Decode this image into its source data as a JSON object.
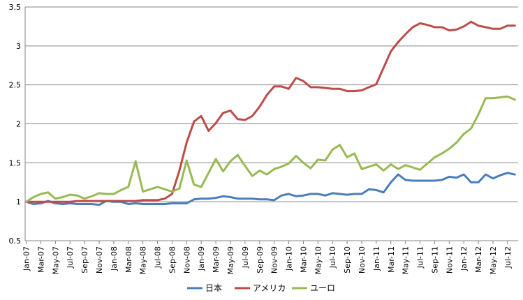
{
  "chart_data": {
    "type": "line",
    "title": "",
    "xlabel": "",
    "ylabel": "",
    "ylim": [
      0.5,
      3.5
    ],
    "yticks": [
      "0.5",
      "1",
      "1.5",
      "2",
      "2.5",
      "3",
      "3.5"
    ],
    "grid": "horizontal",
    "legend": "bottom",
    "x": [
      "Jan-07",
      "Feb-07",
      "Mar-07",
      "Apr-07",
      "May-07",
      "Jun-07",
      "Jul-07",
      "Aug-07",
      "Sep-07",
      "Oct-07",
      "Nov-07",
      "Dec-07",
      "Jan-08",
      "Feb-08",
      "Mar-08",
      "Apr-08",
      "May-08",
      "Jun-08",
      "Jul-08",
      "Aug-08",
      "Sep-08",
      "Oct-08",
      "Nov-08",
      "Dec-08",
      "Jan-09",
      "Feb-09",
      "Mar-09",
      "Apr-09",
      "May-09",
      "Jun-09",
      "Jul-09",
      "Aug-09",
      "Sep-09",
      "Oct-09",
      "Nov-09",
      "Dec-09",
      "Jan-10",
      "Feb-10",
      "Mar-10",
      "Apr-10",
      "May-10",
      "Jun-10",
      "Jul-10",
      "Aug-10",
      "Sep-10",
      "Oct-10",
      "Nov-10",
      "Dec-10",
      "Jan-11",
      "Feb-11",
      "Mar-11",
      "Apr-11",
      "May-11",
      "Jun-11",
      "Jul-11",
      "Aug-11",
      "Sep-11",
      "Oct-11",
      "Nov-11",
      "Dec-11",
      "Jan-12",
      "Feb-12",
      "Mar-12",
      "Apr-12",
      "May-12",
      "Jun-12",
      "Jul-12",
      "Aug-12"
    ],
    "xtick_labels": [
      "Jan-07",
      "Mar-07",
      "May-07",
      "Jul-07",
      "Sep-07",
      "Nov-07",
      "Jan-08",
      "Mar-08",
      "May-08",
      "Jul-08",
      "Sep-08",
      "Nov-08",
      "Jan-09",
      "Mar-09",
      "May-09",
      "Jul-09",
      "Sep-09",
      "Nov-09",
      "Jan-10",
      "Mar-10",
      "May-10",
      "Jul-10",
      "Sep-10",
      "Nov-10",
      "Jan-11",
      "Mar-11",
      "May-11",
      "Jul-11",
      "Sep-11",
      "Nov-11",
      "Jan-12",
      "Mar-12",
      "May-12",
      "Jul-12"
    ],
    "series": [
      {
        "name": "日本",
        "color": "#4a7ebb",
        "values": [
          1.0,
          0.97,
          0.98,
          1.01,
          0.98,
          0.97,
          0.98,
          0.97,
          0.97,
          0.97,
          0.96,
          1.01,
          1.0,
          1.0,
          0.97,
          0.98,
          0.97,
          0.97,
          0.97,
          0.97,
          0.98,
          0.98,
          0.98,
          1.03,
          1.04,
          1.04,
          1.05,
          1.07,
          1.06,
          1.04,
          1.04,
          1.04,
          1.03,
          1.03,
          1.02,
          1.08,
          1.1,
          1.07,
          1.08,
          1.1,
          1.1,
          1.08,
          1.11,
          1.1,
          1.09,
          1.1,
          1.1,
          1.16,
          1.15,
          1.12,
          1.25,
          1.35,
          1.28,
          1.27,
          1.27,
          1.27,
          1.27,
          1.28,
          1.32,
          1.31,
          1.35,
          1.25,
          1.25,
          1.35,
          1.3,
          1.34,
          1.37,
          1.35
        ]
      },
      {
        "name": "アメリカ",
        "color": "#be4b48",
        "values": [
          1.0,
          1.0,
          1.0,
          1.0,
          1.0,
          1.0,
          1.0,
          1.01,
          1.01,
          1.01,
          1.01,
          1.01,
          1.01,
          1.01,
          1.01,
          1.01,
          1.02,
          1.02,
          1.02,
          1.04,
          1.1,
          1.4,
          1.76,
          2.03,
          2.1,
          1.91,
          2.01,
          2.14,
          2.17,
          2.06,
          2.05,
          2.1,
          2.22,
          2.37,
          2.48,
          2.48,
          2.45,
          2.59,
          2.55,
          2.47,
          2.47,
          2.46,
          2.45,
          2.45,
          2.42,
          2.42,
          2.43,
          2.47,
          2.51,
          2.72,
          2.93,
          3.05,
          3.15,
          3.24,
          3.29,
          3.27,
          3.24,
          3.24,
          3.2,
          3.21,
          3.25,
          3.31,
          3.26,
          3.24,
          3.22,
          3.22,
          3.26,
          3.26
        ]
      },
      {
        "name": "ユーロ",
        "color": "#98b954",
        "values": [
          1.0,
          1.06,
          1.1,
          1.12,
          1.04,
          1.06,
          1.09,
          1.08,
          1.04,
          1.07,
          1.11,
          1.1,
          1.1,
          1.15,
          1.19,
          1.52,
          1.13,
          1.16,
          1.19,
          1.16,
          1.13,
          1.17,
          1.53,
          1.22,
          1.19,
          1.37,
          1.55,
          1.39,
          1.52,
          1.6,
          1.46,
          1.33,
          1.4,
          1.35,
          1.42,
          1.45,
          1.49,
          1.59,
          1.5,
          1.43,
          1.54,
          1.53,
          1.67,
          1.73,
          1.57,
          1.62,
          1.42,
          1.45,
          1.48,
          1.4,
          1.48,
          1.42,
          1.47,
          1.44,
          1.41,
          1.49,
          1.57,
          1.62,
          1.68,
          1.76,
          1.87,
          1.94,
          2.12,
          2.33,
          2.33,
          2.34,
          2.35,
          2.31
        ]
      }
    ]
  }
}
